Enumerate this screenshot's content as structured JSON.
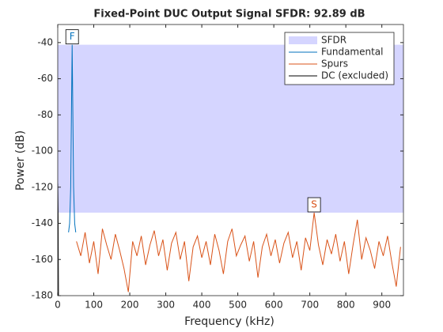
{
  "chart_data": {
    "type": "line",
    "title": "Fixed-Point DUC Output Signal SFDR:  92.89 dB",
    "x_label": "Frequency (kHz)",
    "y_label": "Power (dB)",
    "xlim": [
      0,
      960
    ],
    "ylim": [
      -180,
      -30
    ],
    "xticks": [
      0,
      100,
      200,
      300,
      400,
      500,
      600,
      700,
      800,
      900
    ],
    "yticks": [
      -40,
      -60,
      -80,
      -100,
      -120,
      -140,
      -160,
      -180
    ],
    "legend": "northeast",
    "series": [
      {
        "name": "SFDR",
        "kind": "band",
        "color": "#d5d5ff",
        "values": [
          -134.1,
          -41.2
        ]
      },
      {
        "name": "Fundamental",
        "color": "#0072bd",
        "x": [
          30,
          33,
          36,
          38,
          40,
          42,
          44,
          47,
          50
        ],
        "values": [
          -145,
          -140,
          -120,
          -80,
          -41.2,
          -80,
          -120,
          -140,
          -145
        ]
      },
      {
        "name": "Spurs",
        "color": "#d95319",
        "x": [
          52,
          64,
          76,
          88,
          100,
          112,
          124,
          136,
          148,
          160,
          172,
          184,
          196,
          208,
          220,
          232,
          244,
          256,
          268,
          280,
          292,
          304,
          316,
          328,
          340,
          352,
          364,
          376,
          388,
          400,
          412,
          424,
          436,
          448,
          460,
          472,
          484,
          496,
          508,
          520,
          532,
          544,
          556,
          568,
          580,
          592,
          604,
          616,
          628,
          640,
          652,
          664,
          676,
          688,
          700,
          712,
          724,
          736,
          748,
          760,
          772,
          784,
          796,
          808,
          820,
          832,
          844,
          856,
          868,
          880,
          892,
          904,
          916,
          928,
          940,
          952
        ],
        "values": [
          -150,
          -158,
          -145,
          -162,
          -150,
          -168,
          -143,
          -152,
          -160,
          -146,
          -155,
          -165,
          -178,
          -150,
          -158,
          -147,
          -163,
          -152,
          -144,
          -158,
          -149,
          -166,
          -151,
          -145,
          -160,
          -150,
          -172,
          -153,
          -147,
          -159,
          -150,
          -163,
          -146,
          -155,
          -168,
          -150,
          -143,
          -158,
          -152,
          -147,
          -161,
          -150,
          -170,
          -153,
          -146,
          -158,
          -149,
          -162,
          -151,
          -145,
          -159,
          -150,
          -166,
          -148,
          -155,
          -134.1,
          -152,
          -163,
          -149,
          -157,
          -146,
          -161,
          -150,
          -168,
          -152,
          -138,
          -160,
          -148,
          -155,
          -165,
          -150,
          -158,
          -147,
          -162,
          -175,
          -153
        ]
      },
      {
        "name": "DC (excluded)",
        "color": "#000000",
        "x": [
          0,
          1,
          2
        ],
        "values": [
          -118,
          -135,
          -180
        ]
      }
    ],
    "annotations": [
      {
        "text": "F",
        "x": 40,
        "y": -41.2,
        "color": "#0072bd"
      },
      {
        "text": "S",
        "x": 712,
        "y": -134.1,
        "color": "#d95319"
      }
    ]
  }
}
